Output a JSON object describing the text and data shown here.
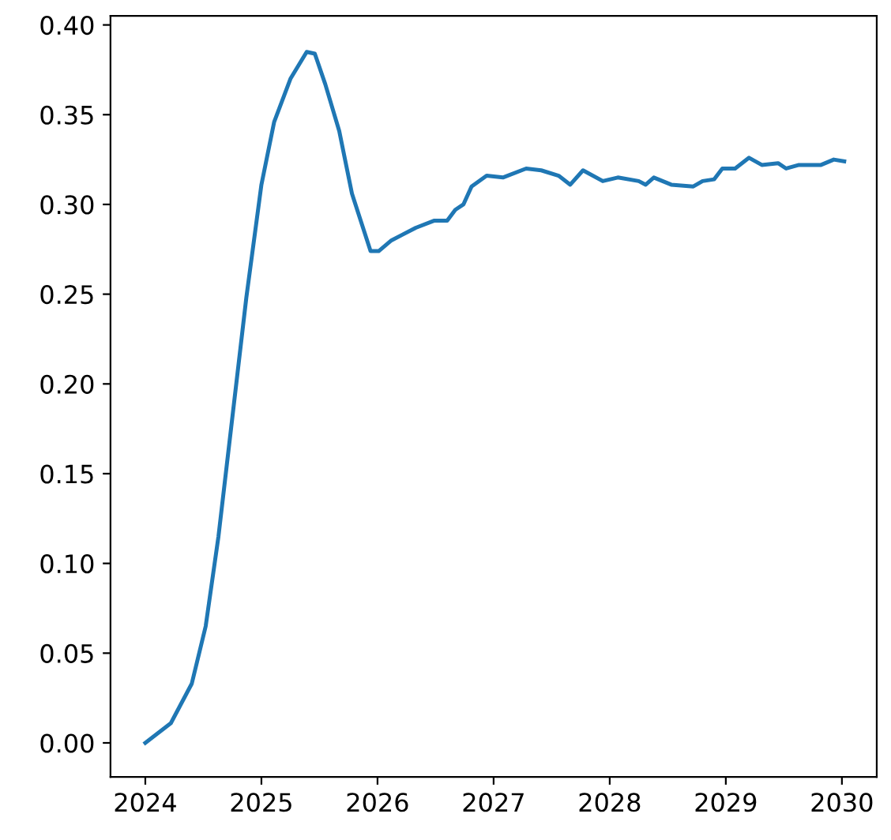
{
  "chart_data": {
    "type": "line",
    "x": [
      2024.0,
      2024.22,
      2024.4,
      2024.52,
      2024.63,
      2024.74,
      2024.87,
      2025.0,
      2025.11,
      2025.25,
      2025.39,
      2025.46,
      2025.55,
      2025.67,
      2025.78,
      2025.94,
      2026.01,
      2026.12,
      2026.33,
      2026.49,
      2026.6,
      2026.67,
      2026.74,
      2026.81,
      2026.94,
      2027.08,
      2027.28,
      2027.41,
      2027.56,
      2027.66,
      2027.77,
      2027.94,
      2028.07,
      2028.25,
      2028.31,
      2028.38,
      2028.53,
      2028.72,
      2028.8,
      2028.9,
      2028.97,
      2029.08,
      2029.2,
      2029.31,
      2029.45,
      2029.52,
      2029.63,
      2029.82,
      2029.93,
      2030.02
    ],
    "series": [
      {
        "color": "#1f77b4",
        "values": [
          0.0,
          0.011,
          0.033,
          0.065,
          0.115,
          0.176,
          0.248,
          0.311,
          0.346,
          0.37,
          0.385,
          0.384,
          0.367,
          0.341,
          0.306,
          0.274,
          0.274,
          0.28,
          0.287,
          0.291,
          0.291,
          0.297,
          0.3,
          0.31,
          0.316,
          0.315,
          0.32,
          0.319,
          0.316,
          0.311,
          0.319,
          0.313,
          0.315,
          0.313,
          0.311,
          0.315,
          0.311,
          0.31,
          0.313,
          0.314,
          0.32,
          0.32,
          0.326,
          0.322,
          0.323,
          0.32,
          0.322,
          0.322,
          0.325,
          0.324
        ]
      }
    ],
    "xlim": [
      2023.7,
      2030.3
    ],
    "ylim": [
      -0.019,
      0.405
    ],
    "xticks": [
      2024,
      2025,
      2026,
      2027,
      2028,
      2029,
      2030
    ],
    "yticks": [
      {
        "value": 0,
        "label": "0.00"
      },
      {
        "value": 0.05,
        "label": "0.05"
      },
      {
        "value": 0.1,
        "label": "0.10"
      },
      {
        "value": 0.15,
        "label": "0.15"
      },
      {
        "value": 0.2,
        "label": "0.20"
      },
      {
        "value": 0.25,
        "label": "0.25"
      },
      {
        "value": 0.3,
        "label": "0.30"
      },
      {
        "value": 0.35,
        "label": "0.35"
      },
      {
        "value": 0.4,
        "label": "0.40"
      }
    ],
    "grid": false
  }
}
